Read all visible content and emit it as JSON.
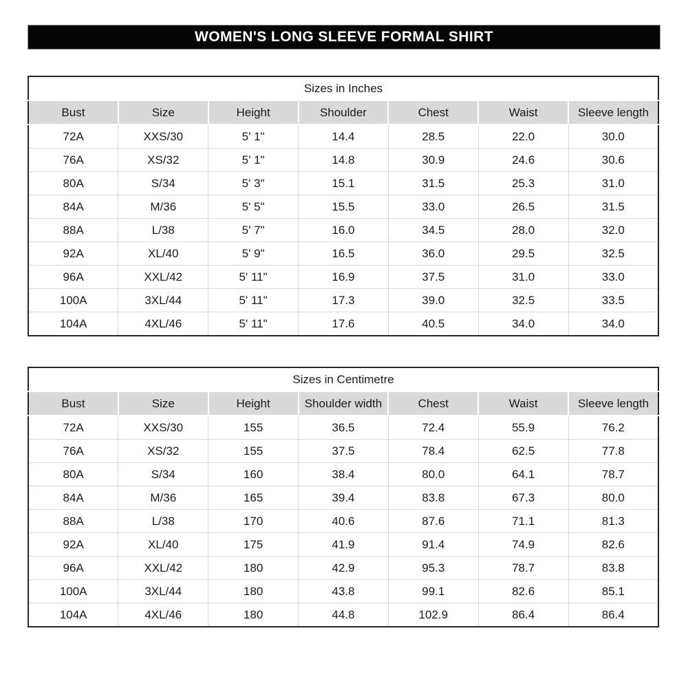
{
  "page_title": "WOMEN'S LONG SLEEVE FORMAL SHIRT",
  "colors": {
    "title_bar_bg": "#050505",
    "title_bar_text": "#ffffff",
    "title_bar_border": "#8c8c8c",
    "table_header_bg": "#d9d9d9",
    "table_outer_border": "#262626",
    "grid_line": "#d9d9d9",
    "text": "#1a1a1a"
  },
  "tables": [
    {
      "title": "Sizes in Inches",
      "columns": [
        "Bust",
        "Size",
        "Height",
        "Shoulder",
        "Chest",
        "Waist",
        "Sleeve length"
      ],
      "rows": [
        [
          "72A",
          "XXS/30",
          "5' 1\"",
          "14.4",
          "28.5",
          "22.0",
          "30.0"
        ],
        [
          "76A",
          "XS/32",
          "5' 1\"",
          "14.8",
          "30.9",
          "24.6",
          "30.6"
        ],
        [
          "80A",
          "S/34",
          "5' 3\"",
          "15.1",
          "31.5",
          "25.3",
          "31.0"
        ],
        [
          "84A",
          "M/36",
          "5' 5\"",
          "15.5",
          "33.0",
          "26.5",
          "31.5"
        ],
        [
          "88A",
          "L/38",
          "5' 7\"",
          "16.0",
          "34.5",
          "28.0",
          "32.0"
        ],
        [
          "92A",
          "XL/40",
          "5' 9\"",
          "16.5",
          "36.0",
          "29.5",
          "32.5"
        ],
        [
          "96A",
          "XXL/42",
          "5' 11\"",
          "16.9",
          "37.5",
          "31.0",
          "33.0"
        ],
        [
          "100A",
          "3XL/44",
          "5' 11\"",
          "17.3",
          "39.0",
          "32.5",
          "33.5"
        ],
        [
          "104A",
          "4XL/46",
          "5' 11\"",
          "17.6",
          "40.5",
          "34.0",
          "34.0"
        ]
      ]
    },
    {
      "title": "Sizes in Centimetre",
      "columns": [
        "Bust",
        "Size",
        "Height",
        "Shoulder width",
        "Chest",
        "Waist",
        "Sleeve length"
      ],
      "rows": [
        [
          "72A",
          "XXS/30",
          "155",
          "36.5",
          "72.4",
          "55.9",
          "76.2"
        ],
        [
          "76A",
          "XS/32",
          "155",
          "37.5",
          "78.4",
          "62.5",
          "77.8"
        ],
        [
          "80A",
          "S/34",
          "160",
          "38.4",
          "80.0",
          "64.1",
          "78.7"
        ],
        [
          "84A",
          "M/36",
          "165",
          "39.4",
          "83.8",
          "67.3",
          "80.0"
        ],
        [
          "88A",
          "L/38",
          "170",
          "40.6",
          "87.6",
          "71.1",
          "81.3"
        ],
        [
          "92A",
          "XL/40",
          "175",
          "41.9",
          "91.4",
          "74.9",
          "82.6"
        ],
        [
          "96A",
          "XXL/42",
          "180",
          "42.9",
          "95.3",
          "78.7",
          "83.8"
        ],
        [
          "100A",
          "3XL/44",
          "180",
          "43.8",
          "99.1",
          "82.6",
          "85.1"
        ],
        [
          "104A",
          "4XL/46",
          "180",
          "44.8",
          "102.9",
          "86.4",
          "86.4"
        ]
      ]
    }
  ]
}
